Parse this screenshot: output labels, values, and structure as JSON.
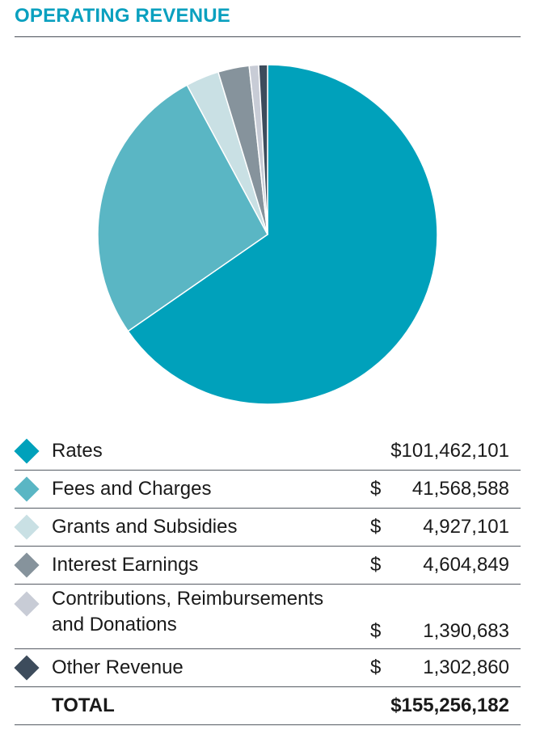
{
  "title": "OPERATING REVENUE",
  "colors": {
    "title": "#0aa0bf",
    "rule": "#4a4f58"
  },
  "chart_data": {
    "type": "pie",
    "title": "OPERATING REVENUE",
    "slices": [
      {
        "label": "Rates",
        "value": 101462101,
        "amount": "$101,462,101",
        "color": "#00a1bb"
      },
      {
        "label": "Fees and Charges",
        "value": 41568588,
        "amount": "41,568,588",
        "color": "#5ab6c4"
      },
      {
        "label": "Grants and Subsidies",
        "value": 4927101,
        "amount": "4,927,101",
        "color": "#c9e0e4"
      },
      {
        "label": "Interest Earnings",
        "value": 4604849,
        "amount": "4,604,849",
        "color": "#86939c"
      },
      {
        "label": "Contributions, Reimbursements and Donations",
        "value": 1390683,
        "amount": "1,390,683",
        "color": "#c8ccd6"
      },
      {
        "label": "Other Revenue",
        "value": 1302860,
        "amount": "1,302,860",
        "color": "#3d4c5c"
      }
    ],
    "total": {
      "label": "TOTAL",
      "amount": "$155,256,182",
      "value": 155256182
    },
    "currency_symbol": "$",
    "legend_position": "bottom"
  }
}
